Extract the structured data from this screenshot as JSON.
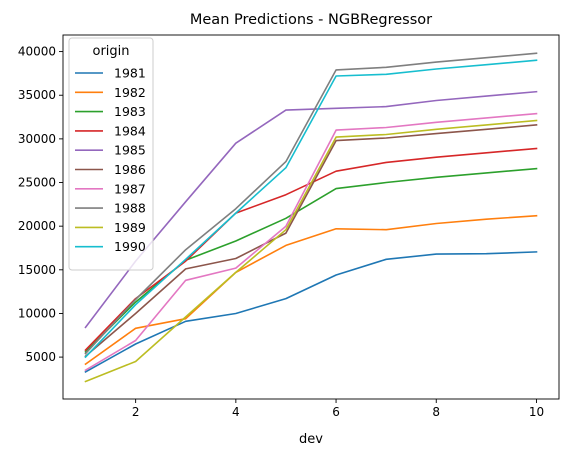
{
  "chart_data": {
    "type": "line",
    "title": "Mean Predictions - NGBRegressor",
    "xlabel": "dev",
    "ylabel": "",
    "xlim": [
      0.55,
      10.45
    ],
    "ylim": [
      200,
      41900
    ],
    "xticks": [
      2,
      4,
      6,
      8,
      10
    ],
    "yticks": [
      5000,
      10000,
      15000,
      20000,
      25000,
      30000,
      35000,
      40000
    ],
    "grid": false,
    "legend": {
      "title": "origin",
      "placement": "top-left"
    },
    "x": [
      1,
      2,
      3,
      4,
      5,
      6,
      7,
      8,
      9,
      10
    ],
    "series": [
      {
        "name": "1981",
        "color": "#1f77b4",
        "values": [
          3300,
          6500,
          9100,
          10000,
          11700,
          14400,
          16200,
          16800,
          16850,
          17050
        ]
      },
      {
        "name": "1982",
        "color": "#ff7f0e",
        "values": [
          4200,
          8300,
          9400,
          14700,
          17800,
          19700,
          19600,
          20300,
          20800,
          21200
        ]
      },
      {
        "name": "1983",
        "color": "#2ca02c",
        "values": [
          5600,
          11300,
          16100,
          18300,
          20900,
          24300,
          25000,
          25600,
          26100,
          26600
        ]
      },
      {
        "name": "1984",
        "color": "#d62728",
        "values": [
          5800,
          11700,
          16000,
          21500,
          23600,
          26300,
          27300,
          27900,
          28400,
          28900
        ]
      },
      {
        "name": "1985",
        "color": "#9467bd",
        "values": [
          8400,
          16000,
          22800,
          29500,
          33300,
          33500,
          33700,
          34400,
          34900,
          35400
        ]
      },
      {
        "name": "1986",
        "color": "#8c564b",
        "values": [
          5100,
          10000,
          15100,
          16300,
          19200,
          29800,
          30100,
          30600,
          31100,
          31600
        ]
      },
      {
        "name": "1987",
        "color": "#e377c2",
        "values": [
          3500,
          6900,
          13800,
          15200,
          20000,
          31000,
          31300,
          31900,
          32400,
          32900
        ]
      },
      {
        "name": "1988",
        "color": "#7f7f7f",
        "values": [
          5400,
          11600,
          17300,
          22000,
          27400,
          37900,
          38200,
          38800,
          39300,
          39800
        ]
      },
      {
        "name": "1989",
        "color": "#bcbd22",
        "values": [
          2200,
          4500,
          9600,
          14700,
          19600,
          30200,
          30500,
          31100,
          31600,
          32100
        ]
      },
      {
        "name": "1990",
        "color": "#17becf",
        "values": [
          5000,
          11000,
          16200,
          21500,
          26700,
          37200,
          37400,
          38000,
          38500,
          39000
        ]
      }
    ]
  }
}
